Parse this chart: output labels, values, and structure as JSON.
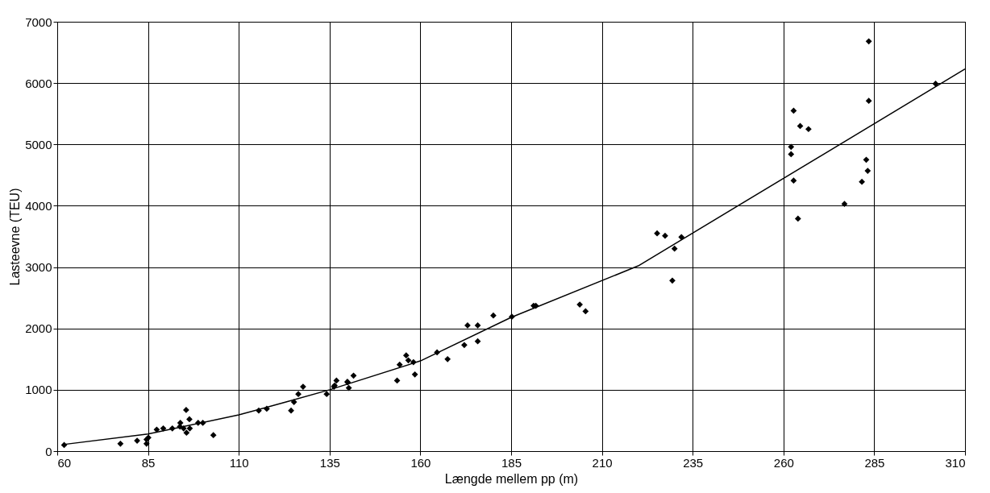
{
  "chart_data": {
    "type": "scatter",
    "xlabel": "Længde mellem pp (m)",
    "ylabel": "Lasteevne (TEU)",
    "xlim": [
      60,
      310
    ],
    "xticks": [
      60,
      85,
      110,
      135,
      160,
      185,
      210,
      235,
      260,
      285,
      310
    ],
    "ylim": [
      0,
      7000
    ],
    "yticks": [
      0,
      1000,
      2000,
      3000,
      4000,
      5000,
      6000,
      7000
    ],
    "grid": true,
    "series": [
      {
        "color": "#000000",
        "marker": "diamond",
        "x": [
          61.9,
          77.4,
          82,
          84.6,
          84.6,
          85.1,
          87.4,
          89.2,
          91.7,
          93.9,
          95.5,
          96.4,
          94.8,
          95.6,
          96.5,
          93.8,
          98.8,
          100.1,
          103,
          115.5,
          117.7,
          124.4,
          125.2,
          126.4,
          127.7,
          134.2,
          136.2,
          136.9,
          139.9,
          140.3,
          141.6,
          136.4,
          140,
          153.6,
          154.3,
          156.1,
          156.7,
          158.1,
          158.5,
          164.6,
          167.5,
          172.1,
          173,
          175.8,
          175.8,
          180.1,
          185.2,
          191.2,
          191.8,
          203.9,
          205.5,
          225.2,
          227.4,
          231.9,
          230,
          229.4,
          262.8,
          264.6,
          266.9,
          262.1,
          262.1,
          262.8,
          264,
          276.8,
          283.5,
          283.5,
          282.8,
          283.2,
          281.6,
          301.9
        ],
        "values": [
          100,
          120,
          170,
          190,
          120,
          220,
          350,
          370,
          370,
          460,
          670,
          520,
          370,
          300,
          370,
          400,
          460,
          460,
          260,
          660,
          690,
          660,
          800,
          930,
          1050,
          930,
          1050,
          1150,
          1130,
          1030,
          1230,
          1070,
          1120,
          1150,
          1410,
          1560,
          1480,
          1450,
          1250,
          1610,
          1500,
          1730,
          2050,
          2050,
          1790,
          2210,
          2190,
          2370,
          2370,
          2390,
          2280,
          3550,
          3510,
          3490,
          3300,
          2780,
          5550,
          5300,
          5250,
          4960,
          4840,
          4410,
          3790,
          4030,
          6680,
          5710,
          4750,
          4570,
          4390,
          5990
        ]
      },
      {
        "type": "line",
        "color": "#000000",
        "line_style": "solid",
        "x": [
          62,
          85,
          110,
          123,
          135,
          160,
          185,
          220,
          310
        ],
        "values": [
          110,
          280,
          590,
          800,
          1000,
          1470,
          2180,
          3020,
          6230
        ]
      }
    ]
  }
}
